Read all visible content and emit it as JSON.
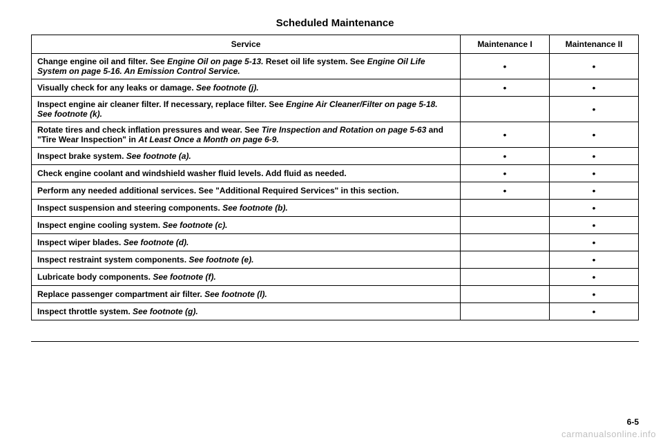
{
  "title": "Scheduled Maintenance",
  "columns": {
    "service": "Service",
    "m1": "Maintenance I",
    "m2": "Maintenance II"
  },
  "rows": [
    {
      "service_html": "Change engine oil and filter. See <span class='italic'>Engine Oil on page 5-13.</span> Reset oil life system. See <span class='italic'>Engine Oil Life System on page 5-16. An Emission Control Service.</span>",
      "m1": "•",
      "m2": "•"
    },
    {
      "service_html": "Visually check for any leaks or damage. <span class='italic'>See footnote (j).</span>",
      "m1": "•",
      "m2": "•"
    },
    {
      "service_html": "Inspect engine air cleaner filter. If necessary, replace filter. See <span class='italic'>Engine Air Cleaner/Filter on page 5-18. See footnote (k).</span>",
      "m1": "",
      "m2": "•"
    },
    {
      "service_html": "Rotate tires and check inflation pressures and wear. See <span class='italic'>Tire Inspection and Rotation on page 5-63</span> and \"Tire Wear Inspection\" in <span class='italic'>At Least Once a Month on page 6-9.</span>",
      "m1": "•",
      "m2": "•"
    },
    {
      "service_html": "Inspect brake system. <span class='italic'>See footnote (a).</span>",
      "m1": "•",
      "m2": "•"
    },
    {
      "service_html": "Check engine coolant and windshield washer fluid levels. Add fluid as needed.",
      "m1": "•",
      "m2": "•"
    },
    {
      "service_html": "Perform any needed additional services. See \"Additional Required Services\" in this section.",
      "m1": "•",
      "m2": "•"
    },
    {
      "service_html": "Inspect suspension and steering components. <span class='italic'>See footnote (b).</span>",
      "m1": "",
      "m2": "•"
    },
    {
      "service_html": "Inspect engine cooling system. <span class='italic'>See footnote (c).</span>",
      "m1": "",
      "m2": "•"
    },
    {
      "service_html": "Inspect wiper blades. <span class='italic'>See footnote (d).</span>",
      "m1": "",
      "m2": "•"
    },
    {
      "service_html": "Inspect restraint system components. <span class='italic'>See footnote (e).</span>",
      "m1": "",
      "m2": "•"
    },
    {
      "service_html": "Lubricate body components. <span class='italic'>See footnote (f).</span>",
      "m1": "",
      "m2": "•"
    },
    {
      "service_html": "Replace passenger compartment air filter. <span class='italic'>See footnote (l).</span>",
      "m1": "",
      "m2": "•"
    },
    {
      "service_html": "Inspect throttle system. <span class='italic'>See footnote (g).</span>",
      "m1": "",
      "m2": "•"
    }
  ],
  "page_number": "6-5",
  "watermark": "carmanualsonline.info"
}
